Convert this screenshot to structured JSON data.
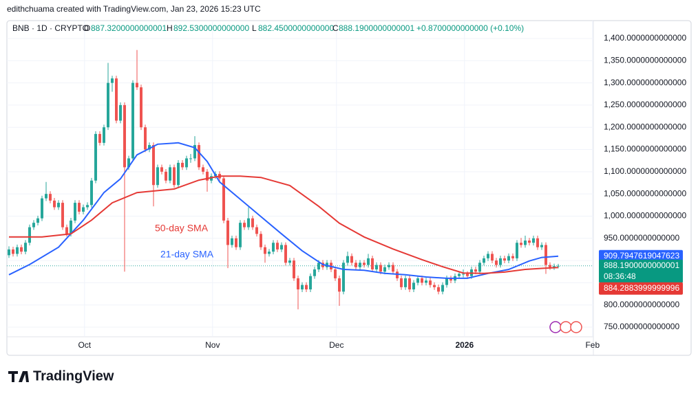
{
  "header": {
    "credit": "edithchuama created with TradingView.com, Jan 23, 2026 15:23 UTC",
    "symbol": "BNB · 1D · CRYPTO",
    "o_label": "O",
    "open": "887.3200000000001",
    "h_label": "H",
    "high": "892.5300000000000",
    "l_label": "L",
    "low": "882.4500000000000",
    "c_label": "C",
    "close": "888.1900000000001",
    "change": "+0.8700000000000 (+0.10%)"
  },
  "footer": {
    "logo": "TradingView"
  },
  "chart_data": {
    "type": "candlestick",
    "up_color": "#26a69a",
    "down_color": "#ef5350",
    "xlim": [
      -0.5,
      141.5
    ],
    "xticks": [
      {
        "value": 18.3,
        "label": "Oct"
      },
      {
        "value": 49.3,
        "label": "Nov"
      },
      {
        "value": 79.3,
        "label": "Dec"
      },
      {
        "value": 110.3,
        "label": "2026"
      },
      {
        "value": 141.3,
        "label": "Feb"
      }
    ],
    "ylim": [
      697.4,
      1440.2
    ],
    "yticks": [
      {
        "value": 1400,
        "label": "1,400.0000000000000"
      },
      {
        "value": 1350,
        "label": "1,350.0000000000000"
      },
      {
        "value": 1300,
        "label": "1,300.0000000000000"
      },
      {
        "value": 1250,
        "label": "1,250.0000000000000"
      },
      {
        "value": 1200,
        "label": "1,200.0000000000000"
      },
      {
        "value": 1150,
        "label": "1,150.0000000000000"
      },
      {
        "value": 1100,
        "label": "1,100.0000000000000"
      },
      {
        "value": 1050,
        "label": "1,050.0000000000000"
      },
      {
        "value": 1000,
        "label": "1,000.0000000000000"
      },
      {
        "value": 950,
        "label": "950.0000000000000"
      },
      {
        "value": 900,
        "label": "900.0000000000000"
      },
      {
        "value": 850,
        "label": "850.0000000000000"
      },
      {
        "value": 800,
        "label": "800.0000000000000"
      },
      {
        "value": 750,
        "label": "750.0000000000000"
      }
    ],
    "grid": true,
    "price_labels": {
      "close": "888.1900000000001",
      "countdown": "08:36:48"
    },
    "candles": [
      [
        912,
        932,
        906,
        925
      ],
      [
        925,
        931,
        909,
        915
      ],
      [
        915,
        936,
        909,
        930
      ],
      [
        930,
        936,
        914,
        920
      ],
      [
        920,
        946,
        914,
        940
      ],
      [
        940,
        981,
        934,
        975
      ],
      [
        975,
        991,
        969,
        985
      ],
      [
        985,
        1001,
        979,
        995
      ],
      [
        995,
        1046,
        989,
        1040
      ],
      [
        1040,
        1077,
        1034,
        1050
      ],
      [
        1050,
        1056,
        1029,
        1035
      ],
      [
        1035,
        1041,
        1014,
        1020
      ],
      [
        1020,
        1036,
        1014,
        1030
      ],
      [
        1030,
        1036,
        969,
        975
      ],
      [
        975,
        981,
        954,
        960
      ],
      [
        960,
        996,
        954,
        990
      ],
      [
        990,
        1036,
        984,
        1030
      ],
      [
        1030,
        1036,
        1004,
        1010
      ],
      [
        1010,
        1026,
        1004,
        1020
      ],
      [
        1020,
        1031,
        1014,
        1025
      ],
      [
        1025,
        1086,
        1019,
        1080
      ],
      [
        1080,
        1191,
        1074,
        1185
      ],
      [
        1185,
        1191,
        1159,
        1165
      ],
      [
        1165,
        1206,
        1159,
        1200
      ],
      [
        1200,
        1345,
        1194,
        1300
      ],
      [
        1300,
        1316,
        1280,
        1310
      ],
      [
        1310,
        1316,
        1209,
        1215
      ],
      [
        1215,
        1256,
        1209,
        1250
      ],
      [
        1250,
        1256,
        875,
        1110
      ],
      [
        1110,
        1136,
        1104,
        1130
      ],
      [
        1130,
        1306,
        1124,
        1300
      ],
      [
        1300,
        1374,
        1284,
        1290
      ],
      [
        1290,
        1296,
        1194,
        1200
      ],
      [
        1200,
        1206,
        1144,
        1150
      ],
      [
        1150,
        1166,
        1144,
        1160
      ],
      [
        1160,
        1166,
        1022,
        1070
      ],
      [
        1070,
        1116,
        1064,
        1110
      ],
      [
        1110,
        1116,
        1094,
        1100
      ],
      [
        1100,
        1106,
        1074,
        1080
      ],
      [
        1080,
        1116,
        1074,
        1110
      ],
      [
        1110,
        1116,
        1064,
        1070
      ],
      [
        1070,
        1126,
        1064,
        1120
      ],
      [
        1120,
        1126,
        1104,
        1110
      ],
      [
        1110,
        1136,
        1104,
        1130
      ],
      [
        1130,
        1140,
        1120,
        1130
      ],
      [
        1130,
        1180,
        1124,
        1160
      ],
      [
        1160,
        1166,
        1104,
        1110
      ],
      [
        1110,
        1116,
        1094,
        1100
      ],
      [
        1100,
        1106,
        1055,
        1080
      ],
      [
        1080,
        1096,
        1074,
        1090
      ],
      [
        1090,
        1101,
        1084,
        1095
      ],
      [
        1095,
        1101,
        1079,
        1085
      ],
      [
        1085,
        1091,
        984,
        990
      ],
      [
        990,
        996,
        883,
        935
      ],
      [
        935,
        956,
        929,
        950
      ],
      [
        950,
        956,
        924,
        930
      ],
      [
        930,
        991,
        924,
        985
      ],
      [
        985,
        991,
        969,
        975
      ],
      [
        975,
        1020,
        969,
        995
      ],
      [
        995,
        1001,
        969,
        975
      ],
      [
        975,
        981,
        954,
        960
      ],
      [
        960,
        966,
        924,
        930
      ],
      [
        930,
        936,
        895,
        915
      ],
      [
        915,
        926,
        909,
        920
      ],
      [
        920,
        946,
        914,
        940
      ],
      [
        940,
        946,
        919,
        925
      ],
      [
        925,
        941,
        919,
        935
      ],
      [
        935,
        941,
        889,
        895
      ],
      [
        895,
        906,
        889,
        900
      ],
      [
        900,
        906,
        854,
        860
      ],
      [
        860,
        866,
        790,
        835
      ],
      [
        835,
        851,
        829,
        845
      ],
      [
        845,
        851,
        829,
        835
      ],
      [
        835,
        871,
        829,
        865
      ],
      [
        865,
        886,
        859,
        880
      ],
      [
        880,
        901,
        874,
        895
      ],
      [
        895,
        901,
        879,
        885
      ],
      [
        885,
        901,
        879,
        895
      ],
      [
        895,
        901,
        874,
        880
      ],
      [
        880,
        886,
        854,
        860
      ],
      [
        860,
        866,
        798,
        830
      ],
      [
        830,
        901,
        824,
        895
      ],
      [
        895,
        920,
        889,
        910
      ],
      [
        910,
        916,
        889,
        895
      ],
      [
        895,
        901,
        879,
        885
      ],
      [
        885,
        901,
        879,
        895
      ],
      [
        895,
        901,
        884,
        890
      ],
      [
        890,
        915,
        884,
        905
      ],
      [
        905,
        911,
        874,
        880
      ],
      [
        880,
        896,
        874,
        890
      ],
      [
        890,
        896,
        869,
        875
      ],
      [
        875,
        891,
        869,
        885
      ],
      [
        885,
        896,
        879,
        890
      ],
      [
        890,
        896,
        869,
        875
      ],
      [
        875,
        881,
        854,
        860
      ],
      [
        860,
        866,
        834,
        840
      ],
      [
        840,
        866,
        834,
        860
      ],
      [
        860,
        866,
        829,
        835
      ],
      [
        835,
        856,
        829,
        850
      ],
      [
        850,
        866,
        844,
        860
      ],
      [
        860,
        866,
        844,
        850
      ],
      [
        850,
        861,
        844,
        855
      ],
      [
        855,
        861,
        839,
        845
      ],
      [
        845,
        851,
        834,
        840
      ],
      [
        840,
        846,
        824,
        830
      ],
      [
        830,
        851,
        824,
        845
      ],
      [
        845,
        866,
        839,
        860
      ],
      [
        860,
        866,
        849,
        855
      ],
      [
        855,
        871,
        849,
        865
      ],
      [
        865,
        876,
        859,
        870
      ],
      [
        870,
        880,
        862,
        870
      ],
      [
        870,
        876,
        859,
        865
      ],
      [
        865,
        886,
        859,
        880
      ],
      [
        880,
        886,
        869,
        875
      ],
      [
        875,
        901,
        869,
        895
      ],
      [
        895,
        911,
        889,
        905
      ],
      [
        905,
        921,
        899,
        915
      ],
      [
        915,
        921,
        894,
        900
      ],
      [
        900,
        906,
        884,
        890
      ],
      [
        890,
        911,
        884,
        905
      ],
      [
        905,
        911,
        894,
        900
      ],
      [
        900,
        916,
        894,
        910
      ],
      [
        910,
        916,
        899,
        905
      ],
      [
        905,
        946,
        899,
        940
      ],
      [
        940,
        951,
        929,
        935
      ],
      [
        935,
        956,
        929,
        945
      ],
      [
        945,
        951,
        934,
        940
      ],
      [
        940,
        956,
        934,
        950
      ],
      [
        950,
        956,
        924,
        930
      ],
      [
        930,
        941,
        924,
        935
      ],
      [
        935,
        941,
        870,
        890
      ],
      [
        890,
        896,
        879,
        885
      ],
      [
        885,
        893,
        879,
        887.32
      ],
      [
        887.32,
        892.53,
        882.45,
        888.19
      ]
    ],
    "series": [
      {
        "name": "21-day SMA",
        "color": "#2962ff",
        "x": [
          0,
          5,
          12,
          18,
          23,
          27,
          31,
          36,
          41,
          45,
          48,
          51,
          56,
          61,
          66,
          71,
          76,
          81,
          86,
          91,
          96,
          101,
          106,
          111,
          116,
          121,
          126,
          129,
          133
        ],
        "values": [
          868,
          891,
          930,
          991,
          1053,
          1084,
          1138,
          1162,
          1165,
          1154,
          1123,
          1077,
          1038,
          999,
          960,
          922,
          891,
          880,
          878,
          871,
          868,
          863,
          860,
          860,
          871,
          880,
          899,
          907,
          909.7947619047623
        ]
      },
      {
        "name": "50-day SMA",
        "color": "#e53935",
        "x": [
          0,
          8,
          15,
          20,
          25,
          31,
          40,
          46,
          51,
          56,
          61,
          68,
          75,
          80,
          86,
          93,
          100,
          105,
          110,
          115,
          120,
          125,
          130,
          133
        ],
        "values": [
          953,
          953,
          960,
          991,
          1030,
          1053,
          1061,
          1081,
          1090,
          1090,
          1087,
          1069,
          1022,
          984,
          953,
          926,
          902,
          886,
          872,
          871,
          874,
          880,
          883,
          884.2883999999996
        ]
      }
    ]
  }
}
